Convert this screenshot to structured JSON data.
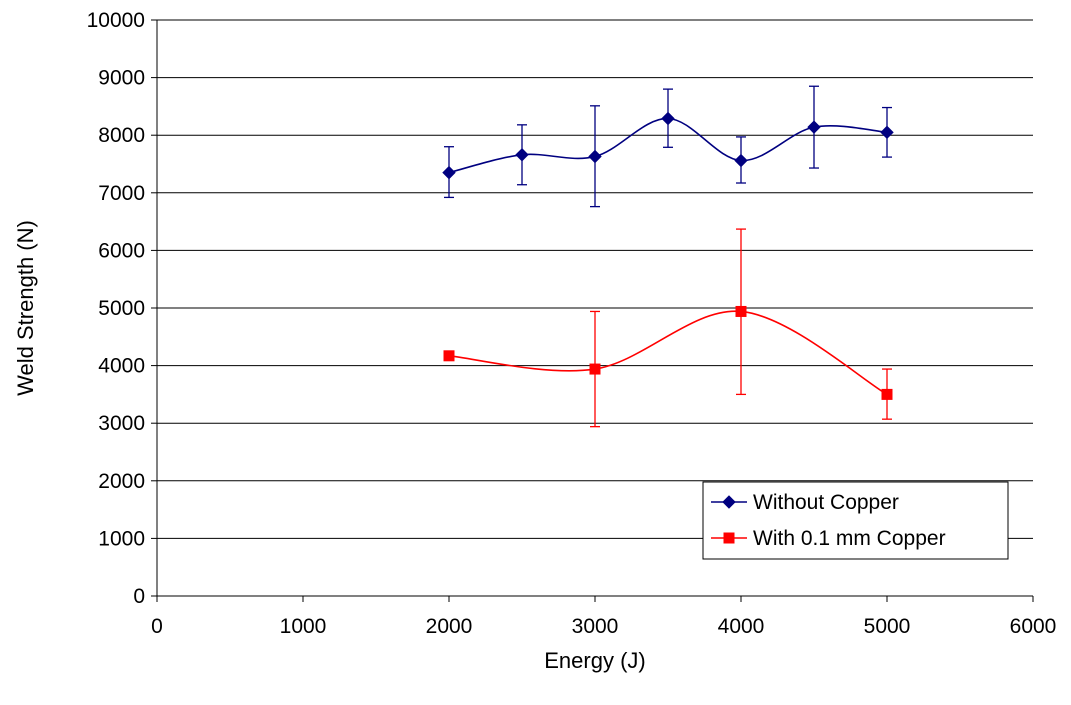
{
  "chart_data": {
    "type": "line",
    "title": "",
    "xlabel": "Energy (J)",
    "ylabel": "Weld Strength (N)",
    "xlim": [
      0,
      6000
    ],
    "ylim": [
      0,
      10000
    ],
    "xticks": [
      0,
      1000,
      2000,
      3000,
      4000,
      5000,
      6000
    ],
    "yticks": [
      0,
      1000,
      2000,
      3000,
      4000,
      5000,
      6000,
      7000,
      8000,
      9000,
      10000
    ],
    "grid": "horizontal",
    "smoothed": true,
    "legend_position": "bottom-right",
    "series": [
      {
        "name": "Without Copper",
        "color": "#000080",
        "marker": "diamond",
        "x": [
          2000,
          2500,
          3000,
          3500,
          4000,
          4500,
          5000
        ],
        "y": [
          7350,
          7660,
          7630,
          8290,
          7560,
          8140,
          8050
        ],
        "err_low": [
          6920,
          7140,
          6760,
          7790,
          7170,
          7430,
          7620
        ],
        "err_high": [
          7800,
          8180,
          8510,
          8800,
          7970,
          8850,
          8480
        ]
      },
      {
        "name": "With 0.1 mm Copper",
        "color": "#ff0000",
        "marker": "square",
        "x": [
          2000,
          3000,
          4000,
          5000
        ],
        "y": [
          4170,
          3940,
          4940,
          3500
        ],
        "err_low": [
          null,
          2940,
          3500,
          3070
        ],
        "err_high": [
          null,
          4940,
          6370,
          3940
        ]
      }
    ]
  }
}
